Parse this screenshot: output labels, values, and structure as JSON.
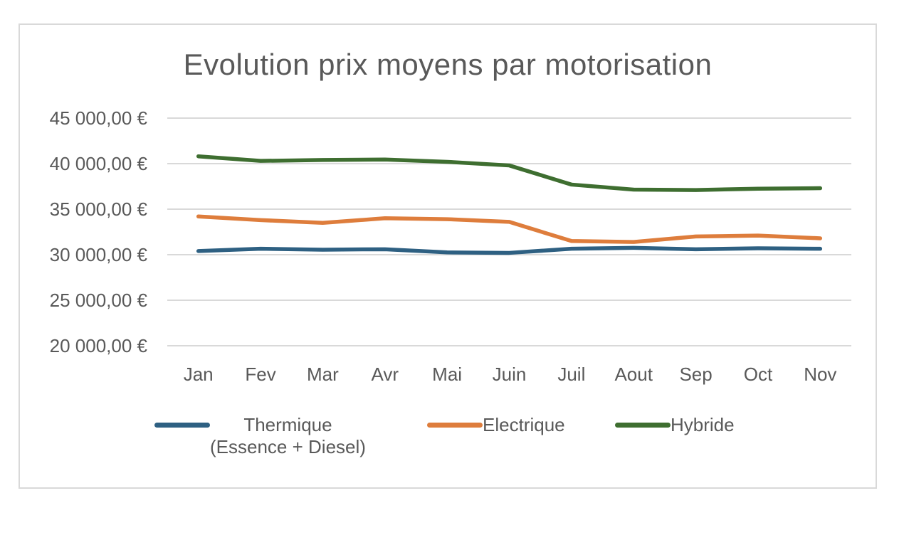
{
  "title": "Evolution prix moyens par motorisation",
  "chart_data": {
    "type": "line",
    "title": "Evolution prix moyens par motorisation",
    "categories": [
      "Jan",
      "Fev",
      "Mar",
      "Avr",
      "Mai",
      "Juin",
      "Juil",
      "Aout",
      "Sep",
      "Oct",
      "Nov"
    ],
    "series": [
      {
        "name": "Thermique",
        "name_line2": "(Essence + Diesel)",
        "color": "#2E6082",
        "values": [
          30400,
          30650,
          30550,
          30600,
          30250,
          30200,
          30650,
          30750,
          30600,
          30700,
          30650
        ]
      },
      {
        "name": "Electrique",
        "name_line2": "",
        "color": "#DE7D3C",
        "values": [
          34200,
          33800,
          33500,
          34000,
          33900,
          33600,
          31500,
          31400,
          32000,
          32100,
          31800
        ]
      },
      {
        "name": "Hybride",
        "name_line2": "",
        "color": "#3E6E30",
        "values": [
          40800,
          40300,
          40400,
          40450,
          40200,
          39800,
          37700,
          37150,
          37100,
          37250,
          37300
        ]
      }
    ],
    "y_axis": {
      "min": 20000,
      "max": 45000,
      "ticks": [
        {
          "value": 45000,
          "label": "45 000,00 €"
        },
        {
          "value": 40000,
          "label": "40 000,00 €"
        },
        {
          "value": 35000,
          "label": "35 000,00 €"
        },
        {
          "value": 30000,
          "label": "30 000,00 €"
        },
        {
          "value": 25000,
          "label": "25 000,00 €"
        },
        {
          "value": 20000,
          "label": "20 000,00 €"
        }
      ]
    },
    "grid": true,
    "legend_position": "bottom",
    "colors": {
      "text": "#595959",
      "gridline": "#D9D9D9",
      "panel_border": "#D9D9D9",
      "background": "#FFFFFF"
    }
  }
}
